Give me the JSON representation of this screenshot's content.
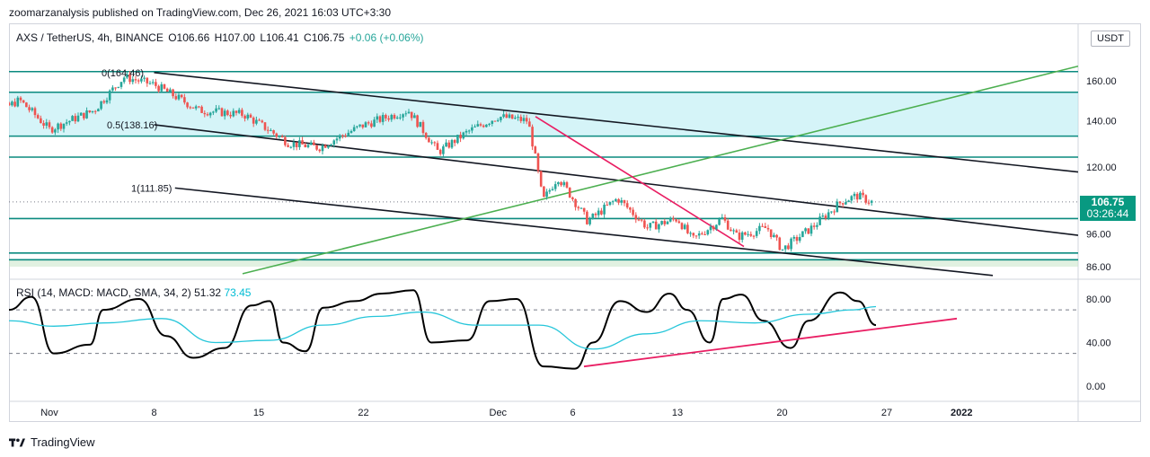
{
  "publisher_line": "zoomarzanalysis published on TradingView.com, Dec 26, 2021 16:03 UTC+3:30",
  "symbol": {
    "name": "AXS / TetherUS, 4h, BINANCE",
    "open": "O106.66",
    "high": "H107.00",
    "low": "L106.41",
    "close": "C106.75",
    "change": "+0.06 (+0.06%)"
  },
  "currency": "USDT",
  "last_price": {
    "value": "106.75",
    "countdown": "03:26:44"
  },
  "rsi_label": {
    "text": "RSI (14, MACD: MACD, SMA, 34, 2)",
    "rsi_value": "51.32",
    "ma_value": "73.45"
  },
  "fib_labels": [
    "0(164.46)",
    "0.5(138.16)",
    "1(111.85)"
  ],
  "footer": {
    "brand": "TradingView"
  },
  "colors": {
    "up": "#26a69a",
    "down": "#ef5350",
    "horizontal": "#0a8a7f",
    "zone_blue": "#b2ebf2",
    "zone_green": "#c8e6c9",
    "trend_green": "#4caf50",
    "trend_pink": "#e91e63",
    "rsi": "#000000",
    "rsi_ma": "#26c6da"
  },
  "chart_data": [
    {
      "type": "candlestick",
      "title": "AXS / TetherUS, 4h, BINANCE",
      "timeframe": "4h",
      "x_tick_labels": [
        "Nov",
        "8",
        "15",
        "22",
        "Dec",
        "6",
        "13",
        "20",
        "27",
        "2022"
      ],
      "y_tick_labels": [
        "160.00",
        "140.00",
        "120.00",
        "96.00",
        "86.00"
      ],
      "y_scale": "log",
      "ylim": [
        83,
        172
      ],
      "close_path": [
        {
          "date": "2021-10-27",
          "close": 138
        },
        {
          "date": "2021-10-30",
          "close": 150
        },
        {
          "date": "2021-11-01",
          "close": 136
        },
        {
          "date": "2021-11-04",
          "close": 145
        },
        {
          "date": "2021-11-06",
          "close": 162
        },
        {
          "date": "2021-11-08",
          "close": 158
        },
        {
          "date": "2021-11-11",
          "close": 145
        },
        {
          "date": "2021-11-14",
          "close": 143
        },
        {
          "date": "2021-11-17",
          "close": 130
        },
        {
          "date": "2021-11-19",
          "close": 128
        },
        {
          "date": "2021-11-22",
          "close": 138
        },
        {
          "date": "2021-11-25",
          "close": 145
        },
        {
          "date": "2021-11-27",
          "close": 126
        },
        {
          "date": "2021-11-29",
          "close": 135
        },
        {
          "date": "2021-12-01",
          "close": 142
        },
        {
          "date": "2021-12-03",
          "close": 140
        },
        {
          "date": "2021-12-04",
          "close": 107
        },
        {
          "date": "2021-12-05",
          "close": 116
        },
        {
          "date": "2021-12-07",
          "close": 100
        },
        {
          "date": "2021-12-09",
          "close": 108
        },
        {
          "date": "2021-12-11",
          "close": 98
        },
        {
          "date": "2021-12-13",
          "close": 101
        },
        {
          "date": "2021-12-14",
          "close": 94
        },
        {
          "date": "2021-12-16",
          "close": 101
        },
        {
          "date": "2021-12-17",
          "close": 95
        },
        {
          "date": "2021-12-19",
          "close": 98
        },
        {
          "date": "2021-12-20",
          "close": 91
        },
        {
          "date": "2021-12-22",
          "close": 98
        },
        {
          "date": "2021-12-24",
          "close": 107
        },
        {
          "date": "2021-12-25",
          "close": 109
        },
        {
          "date": "2021-12-26",
          "close": 106.75
        }
      ],
      "horizontal_levels": [
        165,
        154,
        133,
        124,
        101,
        90,
        88
      ],
      "zones": [
        {
          "from": 133,
          "to": 154,
          "color": "zone_blue"
        },
        {
          "from": 86,
          "to": 88,
          "color": "zone_green"
        }
      ],
      "fibonacci_channel": {
        "levels": [
          "0(164.46)",
          "0.5(138.16)",
          "1(111.85)"
        ]
      },
      "last": 106.75
    },
    {
      "type": "line",
      "title": "RSI (14, MACD: MACD, SMA, 34, 2)",
      "y_tick_labels": [
        "80.00",
        "40.00",
        "0.00"
      ],
      "ylim": [
        0,
        100
      ],
      "dashed_levels": [
        70,
        30
      ],
      "series": [
        {
          "name": "RSI",
          "value": 51.32
        },
        {
          "name": "MA",
          "value": 73.45
        }
      ]
    }
  ]
}
